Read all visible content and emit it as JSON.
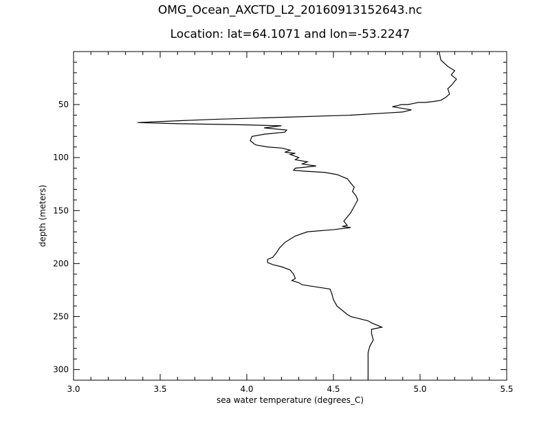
{
  "chart_data": {
    "type": "line",
    "title": "OMG_Ocean_AXCTD_L2_20160913152643.nc",
    "subtitle": "Location: lat=64.1071 and lon=-53.2247",
    "xlabel": "sea water temperature (degrees_C)",
    "ylabel": "depth (meters)",
    "xlim": [
      3.0,
      5.5
    ],
    "ylim": [
      310,
      0
    ],
    "y_inverted": true,
    "grid": false,
    "legend": "none",
    "x_ticks": [
      3.0,
      3.5,
      4.0,
      4.5,
      5.0,
      5.5
    ],
    "x_tick_labels": [
      "3.0",
      "3.5",
      "4.0",
      "4.5",
      "5.0",
      "5.5"
    ],
    "y_ticks": [
      50,
      100,
      150,
      200,
      250,
      300
    ],
    "y_tick_labels": [
      "50",
      "100",
      "150",
      "200",
      "250",
      "300"
    ],
    "line_color": "#000000",
    "series": [
      {
        "x": [
          5.11,
          5.12,
          5.16,
          5.2,
          5.18,
          5.21,
          5.18,
          5.16,
          5.17,
          5.15,
          5.12,
          5.08,
          5.03,
          4.99,
          4.96,
          4.93,
          4.89,
          4.87,
          4.84,
          4.95,
          4.9,
          4.8,
          4.6,
          4.2,
          3.8,
          3.5,
          3.37,
          3.6,
          3.95,
          4.2,
          4.1,
          4.23,
          4.22,
          4.1,
          4.03,
          4.02,
          4.05,
          4.12,
          4.2,
          4.25,
          4.22,
          4.28,
          4.25,
          4.3,
          4.28,
          4.35,
          4.32,
          4.4,
          4.28,
          4.27,
          4.35,
          4.45,
          4.52,
          4.55,
          4.58,
          4.6,
          4.62,
          4.61,
          4.63,
          4.64,
          4.62,
          4.6,
          4.58,
          4.56,
          4.58,
          4.55,
          4.6,
          4.5,
          4.35,
          4.28,
          4.22,
          4.19,
          4.17,
          4.15,
          4.12,
          4.12,
          4.15,
          4.2,
          4.25,
          4.27,
          4.28,
          4.26,
          4.3,
          4.32,
          4.4,
          4.48,
          4.49,
          4.5,
          4.52,
          4.55,
          4.58,
          4.6,
          4.65,
          4.7,
          4.72,
          4.75,
          4.78,
          4.72,
          4.72,
          4.73,
          4.71,
          4.7,
          4.7,
          4.7
        ],
        "y": [
          0,
          8,
          14,
          18,
          22,
          26,
          32,
          35,
          40,
          43,
          46,
          47,
          48,
          48,
          49,
          50,
          50,
          51,
          52,
          55,
          57,
          58,
          60,
          62,
          64,
          66,
          67,
          68,
          69,
          70,
          72,
          74,
          76,
          78,
          80,
          84,
          88,
          90,
          91,
          93,
          95,
          96,
          97,
          100,
          102,
          104,
          106,
          108,
          110,
          112,
          113,
          114,
          116,
          118,
          120,
          124,
          128,
          132,
          136,
          140,
          146,
          152,
          156,
          160,
          164,
          165,
          166,
          168,
          170,
          174,
          180,
          185,
          190,
          194,
          196,
          199,
          201,
          203,
          206,
          210,
          214,
          216,
          218,
          220,
          222,
          224,
          228,
          234,
          240,
          244,
          248,
          250,
          252,
          254,
          256,
          258,
          260,
          262,
          266,
          272,
          278,
          284,
          295,
          310
        ]
      }
    ]
  }
}
